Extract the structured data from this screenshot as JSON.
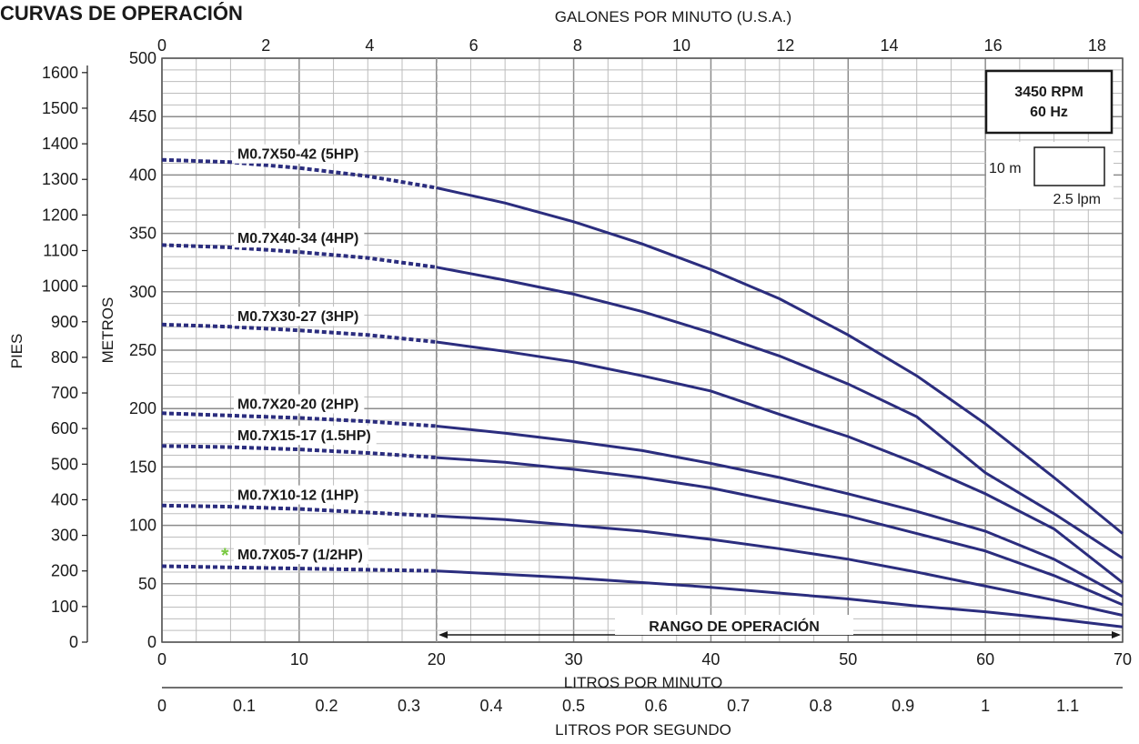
{
  "title": "CURVAS DE OPERACIÓN",
  "badge": {
    "rpm": "3450 RPM",
    "hz": "60 Hz"
  },
  "scale_legend": {
    "head": "10 m",
    "flow": "2.5 lpm"
  },
  "operating_range_label": "RANGO DE OPERACIÓN",
  "colors": {
    "curve": "#2b2d7e",
    "grid": "#8c8c8c",
    "star": "#7ac943",
    "dashed_line": "#999999"
  },
  "chart_data": {
    "type": "line",
    "title": "CURVAS DE OPERACIÓN",
    "xlabel": "LITROS POR MINUTO",
    "ylabel": "METROS",
    "xlim": [
      0,
      70
    ],
    "ylim": [
      0,
      500
    ],
    "x_ticks": [
      0,
      10,
      20,
      30,
      40,
      50,
      60,
      70
    ],
    "y_ticks": [
      0,
      50,
      100,
      150,
      200,
      250,
      300,
      350,
      400,
      450,
      500
    ],
    "grid": true,
    "operating_range": [
      20,
      70
    ],
    "secondary_axes": {
      "top": {
        "label": "GALONES POR MINUTO (U.S.A.)",
        "ticks": [
          0,
          2,
          4,
          6,
          8,
          10,
          12,
          14,
          16,
          18
        ]
      },
      "left": {
        "label": "PIES",
        "ticks": [
          0,
          100,
          200,
          300,
          400,
          500,
          600,
          700,
          800,
          900,
          1000,
          1100,
          1200,
          1300,
          1400,
          1500,
          1600
        ]
      },
      "bottom": {
        "label": "LITROS POR SEGUNDO",
        "ticks": [
          "0",
          "0.1",
          "0.2",
          "0.3",
          "0.4",
          "0.5",
          "0.6",
          "0.7",
          "0.8",
          "0.9",
          "1",
          "1.1"
        ]
      }
    },
    "series": [
      {
        "name": "M0.7X50-42 (5HP)",
        "x": [
          0,
          5,
          10,
          15,
          20,
          25,
          30,
          35,
          40,
          45,
          50,
          55,
          60,
          65,
          70
        ],
        "values": [
          413,
          411,
          406,
          399,
          389,
          376,
          360,
          341,
          319,
          294,
          263,
          228,
          187,
          141,
          93
        ]
      },
      {
        "name": "M0.7X40-34 (4HP)",
        "x": [
          0,
          5,
          10,
          15,
          20,
          25,
          30,
          35,
          40,
          45,
          50,
          55,
          60,
          65,
          70
        ],
        "values": [
          340,
          338,
          334,
          329,
          321,
          310,
          298,
          283,
          265,
          245,
          221,
          193,
          145,
          110,
          72
        ]
      },
      {
        "name": "M0.7X30-27 (3HP)",
        "x": [
          0,
          5,
          10,
          15,
          20,
          25,
          30,
          35,
          40,
          45,
          50,
          55,
          60,
          65,
          70
        ],
        "values": [
          272,
          270,
          267,
          263,
          257,
          249,
          240,
          228,
          215,
          195,
          176,
          153,
          127,
          97,
          51
        ]
      },
      {
        "name": "M0.7X20-20 (2HP)",
        "x": [
          0,
          5,
          10,
          15,
          20,
          25,
          30,
          35,
          40,
          45,
          50,
          55,
          60,
          65,
          70
        ],
        "values": [
          196,
          194,
          192,
          189,
          185,
          179,
          172,
          164,
          153,
          141,
          127,
          112,
          95,
          71,
          39
        ]
      },
      {
        "name": "M0.7X15-17 (1.5HP)",
        "x": [
          0,
          5,
          10,
          15,
          20,
          25,
          30,
          35,
          40,
          45,
          50,
          55,
          60,
          65,
          70
        ],
        "values": [
          168,
          167,
          165,
          162,
          158,
          154,
          148,
          141,
          132,
          120,
          108,
          93,
          78,
          57,
          32
        ]
      },
      {
        "name": "M0.7X10-12 (1HP)",
        "x": [
          0,
          5,
          10,
          15,
          20,
          25,
          30,
          35,
          40,
          45,
          50,
          55,
          60,
          65,
          70
        ],
        "values": [
          117,
          116,
          114,
          111,
          108,
          105,
          100,
          95,
          88,
          80,
          71,
          60,
          48,
          36,
          23
        ]
      },
      {
        "name": "M0.7X05-7 (1/2HP)",
        "x": [
          0,
          5,
          10,
          15,
          20,
          25,
          30,
          35,
          40,
          45,
          50,
          55,
          60,
          65,
          70
        ],
        "values": [
          65,
          64,
          63,
          62,
          61,
          58,
          55,
          51,
          47,
          42,
          37,
          31,
          26,
          20,
          13
        ]
      }
    ]
  }
}
